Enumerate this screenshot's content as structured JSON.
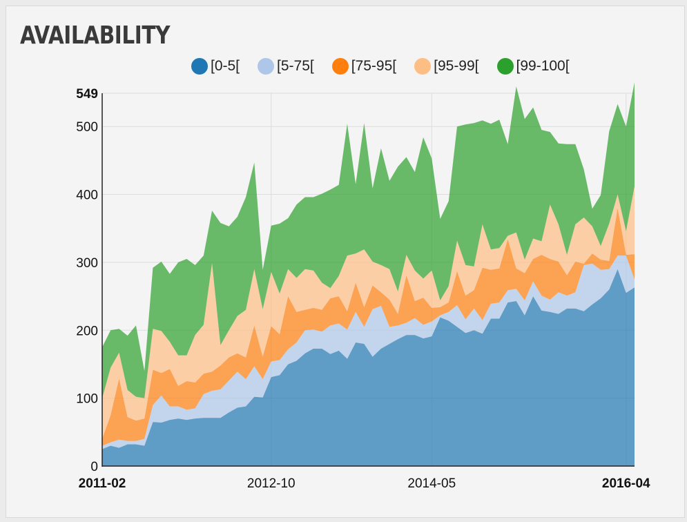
{
  "panel": {
    "title": "AVAILABILITY"
  },
  "chart_data": {
    "type": "area",
    "stacked": true,
    "title": "AVAILABILITY",
    "xlabel": "",
    "ylabel": "",
    "ylim": [
      0,
      549
    ],
    "y_ticks": [
      0,
      100,
      200,
      300,
      400,
      500,
      549
    ],
    "x_ticks": [
      {
        "label": "2011-02",
        "bold": true,
        "index": 0
      },
      {
        "label": "2012-10",
        "bold": false,
        "index": 20
      },
      {
        "label": "2014-05",
        "bold": false,
        "index": 39
      },
      {
        "label": "2016-04",
        "bold": true,
        "index": 62
      }
    ],
    "grid": true,
    "legend_position": "top",
    "series": [
      {
        "name": "[0-5[",
        "color": "#1f77b4",
        "values": [
          25,
          30,
          27,
          32,
          32,
          30,
          65,
          64,
          68,
          70,
          68,
          70,
          71,
          71,
          71,
          79,
          86,
          88,
          102,
          101,
          131,
          134,
          150,
          155,
          166,
          173,
          173,
          165,
          170,
          158,
          182,
          180,
          161,
          173,
          180,
          187,
          193,
          193,
          188,
          191,
          219,
          214,
          205,
          196,
          200,
          195,
          217,
          217,
          241,
          243,
          222,
          250,
          229,
          227,
          224,
          232,
          232,
          228,
          238,
          247,
          260,
          290,
          255,
          263
        ]
      },
      {
        "name": "[5-75[",
        "color": "#aec7e8",
        "values": [
          5,
          5,
          12,
          5,
          5,
          10,
          25,
          40,
          20,
          18,
          15,
          15,
          35,
          40,
          42,
          47,
          53,
          40,
          45,
          27,
          23,
          22,
          22,
          27,
          34,
          28,
          25,
          42,
          40,
          43,
          45,
          25,
          70,
          63,
          25,
          20,
          18,
          25,
          20,
          22,
          3,
          13,
          32,
          20,
          32,
          20,
          22,
          24,
          18,
          18,
          22,
          22,
          22,
          18,
          32,
          19,
          24,
          68,
          60,
          42,
          30,
          20,
          55,
          12
        ]
      },
      {
        "name": "[75-95[",
        "color": "#ff7f0e",
        "values": [
          10,
          40,
          90,
          35,
          30,
          30,
          52,
          33,
          55,
          30,
          42,
          38,
          30,
          28,
          35,
          34,
          27,
          32,
          60,
          33,
          52,
          38,
          78,
          45,
          30,
          32,
          32,
          40,
          40,
          27,
          43,
          29,
          35,
          20,
          40,
          17,
          70,
          25,
          40,
          20,
          12,
          14,
          50,
          35,
          27,
          77,
          50,
          50,
          75,
          30,
          40,
          33,
          60,
          60,
          45,
          30,
          45,
          2,
          15,
          15,
          12,
          70,
          1,
          37
        ]
      },
      {
        "name": "[95-99[",
        "color": "#fdbe85",
        "values": [
          60,
          70,
          38,
          40,
          35,
          30,
          60,
          62,
          40,
          45,
          38,
          70,
          72,
          160,
          30,
          40,
          55,
          70,
          83,
          70,
          80,
          60,
          40,
          50,
          60,
          55,
          40,
          15,
          30,
          82,
          43,
          85,
          35,
          40,
          45,
          33,
          30,
          45,
          28,
          55,
          10,
          24,
          45,
          45,
          35,
          64,
          30,
          30,
          5,
          53,
          20,
          30,
          20,
          80,
          55,
          30,
          55,
          68,
          40,
          20,
          55,
          20,
          35,
          100
        ]
      },
      {
        "name": "[99-100[",
        "color": "#2ca02c",
        "values": [
          75,
          55,
          35,
          80,
          105,
          40,
          90,
          102,
          100,
          137,
          142,
          103,
          102,
          77,
          180,
          153,
          146,
          166,
          157,
          58,
          68,
          103,
          75,
          108,
          106,
          108,
          131,
          145,
          134,
          194,
          102,
          186,
          108,
          172,
          130,
          184,
          144,
          145,
          208,
          165,
          120,
          125,
          168,
          207,
          211,
          153,
          185,
          189,
          135,
          215,
          207,
          193,
          164,
          107,
          119,
          163,
          118,
          71,
          26,
          75,
          136,
          133,
          154,
          153
        ]
      }
    ]
  }
}
